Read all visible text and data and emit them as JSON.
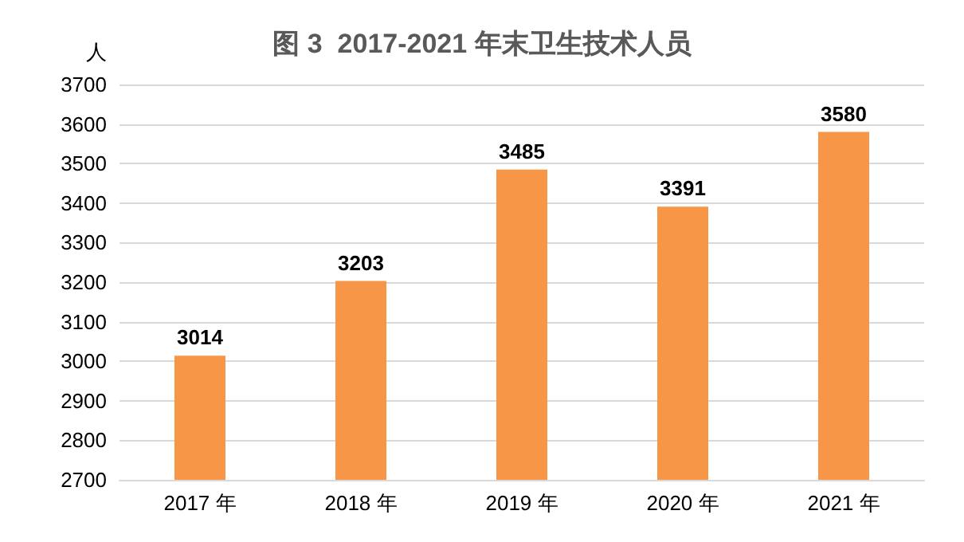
{
  "chart_data": {
    "type": "bar",
    "title": "图 3  2017-2021 年末卫生技术人员",
    "ylabel": "人",
    "categories": [
      "2017 年",
      "2018 年",
      "2019 年",
      "2020 年",
      "2021 年"
    ],
    "values": [
      3014,
      3203,
      3485,
      3391,
      3580
    ],
    "color": "#f79646",
    "ylim": [
      2700,
      3700
    ],
    "yticks": [
      2700,
      2800,
      2900,
      3000,
      3100,
      3200,
      3300,
      3400,
      3500,
      3600,
      3700
    ],
    "grid": "y",
    "data_labels": true
  }
}
